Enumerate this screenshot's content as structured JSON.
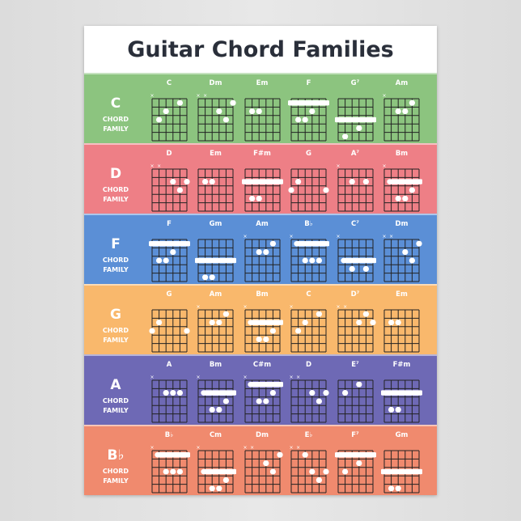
{
  "title": "Guitar Chord Families",
  "family_subtitle": [
    "CHORD",
    "FAMILY"
  ],
  "families": [
    {
      "key": "C",
      "color": "#8cc47f",
      "chords": [
        {
          "name": "C",
          "muted": [
            6
          ],
          "dots": [
            [
              5,
              3
            ],
            [
              4,
              2
            ],
            [
              2,
              1
            ]
          ],
          "barre": null
        },
        {
          "name": "Dm",
          "muted": [
            6,
            5
          ],
          "dots": [
            [
              3,
              2
            ],
            [
              2,
              3
            ],
            [
              1,
              1
            ]
          ],
          "barre": null
        },
        {
          "name": "Em",
          "muted": [],
          "dots": [
            [
              5,
              2
            ],
            [
              4,
              2
            ]
          ],
          "barre": null
        },
        {
          "name": "F",
          "muted": [],
          "dots": [
            [
              3,
              2
            ],
            [
              5,
              3
            ],
            [
              4,
              3
            ]
          ],
          "barre": [
            1,
            6,
            1
          ]
        },
        {
          "name": "G⁷",
          "muted": [],
          "dots": [
            [
              3,
              4
            ],
            [
              5,
              5
            ]
          ],
          "barre": [
            3,
            6,
            1
          ]
        },
        {
          "name": "Am",
          "muted": [
            6
          ],
          "dots": [
            [
              4,
              2
            ],
            [
              3,
              2
            ],
            [
              2,
              1
            ]
          ],
          "barre": null
        }
      ]
    },
    {
      "key": "D",
      "color": "#ee7f86",
      "chords": [
        {
          "name": "D",
          "muted": [
            6,
            5
          ],
          "dots": [
            [
              3,
              2
            ],
            [
              1,
              2
            ],
            [
              2,
              3
            ]
          ],
          "barre": null
        },
        {
          "name": "Em",
          "muted": [],
          "dots": [
            [
              5,
              2
            ],
            [
              4,
              2
            ]
          ],
          "barre": null
        },
        {
          "name": "F#m",
          "muted": [],
          "dots": [
            [
              5,
              4
            ],
            [
              4,
              4
            ]
          ],
          "barre": [
            2,
            6,
            1
          ]
        },
        {
          "name": "G",
          "muted": [],
          "dots": [
            [
              5,
              2
            ],
            [
              6,
              3
            ],
            [
              1,
              3
            ]
          ],
          "barre": null
        },
        {
          "name": "A⁷",
          "muted": [
            6
          ],
          "dots": [
            [
              4,
              2
            ],
            [
              2,
              2
            ]
          ],
          "barre": null
        },
        {
          "name": "Bm",
          "muted": [
            6
          ],
          "dots": [
            [
              4,
              4
            ],
            [
              3,
              4
            ],
            [
              2,
              3
            ]
          ],
          "barre": [
            2,
            5,
            1
          ]
        }
      ]
    },
    {
      "key": "F",
      "color": "#5b8fd6",
      "chords": [
        {
          "name": "F",
          "muted": [],
          "dots": [
            [
              3,
              2
            ],
            [
              5,
              3
            ],
            [
              4,
              3
            ]
          ],
          "barre": [
            1,
            6,
            1
          ]
        },
        {
          "name": "Gm",
          "muted": [],
          "dots": [
            [
              5,
              5
            ],
            [
              4,
              5
            ]
          ],
          "barre": [
            3,
            6,
            1
          ]
        },
        {
          "name": "Am",
          "muted": [
            6
          ],
          "dots": [
            [
              4,
              2
            ],
            [
              3,
              2
            ],
            [
              2,
              1
            ]
          ],
          "barre": null
        },
        {
          "name": "B♭",
          "muted": [
            6
          ],
          "dots": [
            [
              4,
              3
            ],
            [
              3,
              3
            ],
            [
              2,
              3
            ]
          ],
          "barre": [
            1,
            5,
            1
          ]
        },
        {
          "name": "C⁷",
          "muted": [
            6
          ],
          "dots": [
            [
              4,
              4
            ],
            [
              2,
              4
            ]
          ],
          "barre": [
            3,
            5,
            1
          ]
        },
        {
          "name": "Dm",
          "muted": [
            6,
            5
          ],
          "dots": [
            [
              3,
              2
            ],
            [
              2,
              3
            ],
            [
              1,
              1
            ]
          ],
          "barre": null
        }
      ]
    },
    {
      "key": "G",
      "color": "#f9b86c",
      "chords": [
        {
          "name": "G",
          "muted": [],
          "dots": [
            [
              5,
              2
            ],
            [
              6,
              3
            ],
            [
              1,
              3
            ]
          ],
          "barre": null
        },
        {
          "name": "Am",
          "muted": [
            6
          ],
          "dots": [
            [
              4,
              2
            ],
            [
              3,
              2
            ],
            [
              2,
              1
            ]
          ],
          "barre": null
        },
        {
          "name": "Bm",
          "muted": [
            6
          ],
          "dots": [
            [
              4,
              4
            ],
            [
              3,
              4
            ],
            [
              2,
              3
            ]
          ],
          "barre": [
            2,
            5,
            1
          ]
        },
        {
          "name": "C",
          "muted": [
            6
          ],
          "dots": [
            [
              5,
              3
            ],
            [
              4,
              2
            ],
            [
              2,
              1
            ]
          ],
          "barre": null
        },
        {
          "name": "D⁷",
          "muted": [
            6,
            5
          ],
          "dots": [
            [
              3,
              2
            ],
            [
              2,
              1
            ],
            [
              1,
              2
            ]
          ],
          "barre": null
        },
        {
          "name": "Em",
          "muted": [],
          "dots": [
            [
              5,
              2
            ],
            [
              4,
              2
            ]
          ],
          "barre": null
        }
      ]
    },
    {
      "key": "A",
      "color": "#6e69b5",
      "chords": [
        {
          "name": "A",
          "muted": [
            6
          ],
          "dots": [
            [
              4,
              2
            ],
            [
              3,
              2
            ],
            [
              2,
              2
            ]
          ],
          "barre": null
        },
        {
          "name": "Bm",
          "muted": [
            6
          ],
          "dots": [
            [
              4,
              4
            ],
            [
              3,
              4
            ],
            [
              2,
              3
            ]
          ],
          "barre": [
            2,
            5,
            1
          ]
        },
        {
          "name": "C#m",
          "muted": [
            6
          ],
          "dots": [
            [
              4,
              3
            ],
            [
              3,
              3
            ],
            [
              2,
              2
            ]
          ],
          "barre": [
            1,
            5,
            1
          ]
        },
        {
          "name": "D",
          "muted": [
            6,
            5
          ],
          "dots": [
            [
              3,
              2
            ],
            [
              1,
              2
            ],
            [
              2,
              3
            ]
          ],
          "barre": null
        },
        {
          "name": "E⁷",
          "muted": [],
          "dots": [
            [
              5,
              2
            ],
            [
              3,
              1
            ]
          ],
          "barre": null
        },
        {
          "name": "F#m",
          "muted": [],
          "dots": [
            [
              5,
              4
            ],
            [
              4,
              4
            ]
          ],
          "barre": [
            2,
            6,
            1
          ]
        }
      ]
    },
    {
      "key": "B♭",
      "color": "#f08a6e",
      "chords": [
        {
          "name": "B♭",
          "muted": [
            6
          ],
          "dots": [
            [
              4,
              3
            ],
            [
              3,
              3
            ],
            [
              2,
              3
            ]
          ],
          "barre": [
            1,
            5,
            1
          ]
        },
        {
          "name": "Cm",
          "muted": [
            6
          ],
          "dots": [
            [
              4,
              5
            ],
            [
              3,
              5
            ],
            [
              2,
              4
            ]
          ],
          "barre": [
            3,
            5,
            1
          ]
        },
        {
          "name": "Dm",
          "muted": [
            6,
            5
          ],
          "dots": [
            [
              3,
              2
            ],
            [
              2,
              3
            ],
            [
              1,
              1
            ]
          ],
          "barre": null
        },
        {
          "name": "E♭",
          "muted": [
            6,
            5
          ],
          "dots": [
            [
              4,
              1
            ],
            [
              3,
              3
            ],
            [
              2,
              4
            ],
            [
              1,
              3
            ]
          ],
          "barre": null
        },
        {
          "name": "F⁷",
          "muted": [],
          "dots": [
            [
              5,
              3
            ],
            [
              3,
              2
            ]
          ],
          "barre": [
            1,
            6,
            1
          ]
        },
        {
          "name": "Gm",
          "muted": [],
          "dots": [
            [
              5,
              5
            ],
            [
              4,
              5
            ]
          ],
          "barre": [
            3,
            6,
            1
          ]
        }
      ]
    }
  ]
}
